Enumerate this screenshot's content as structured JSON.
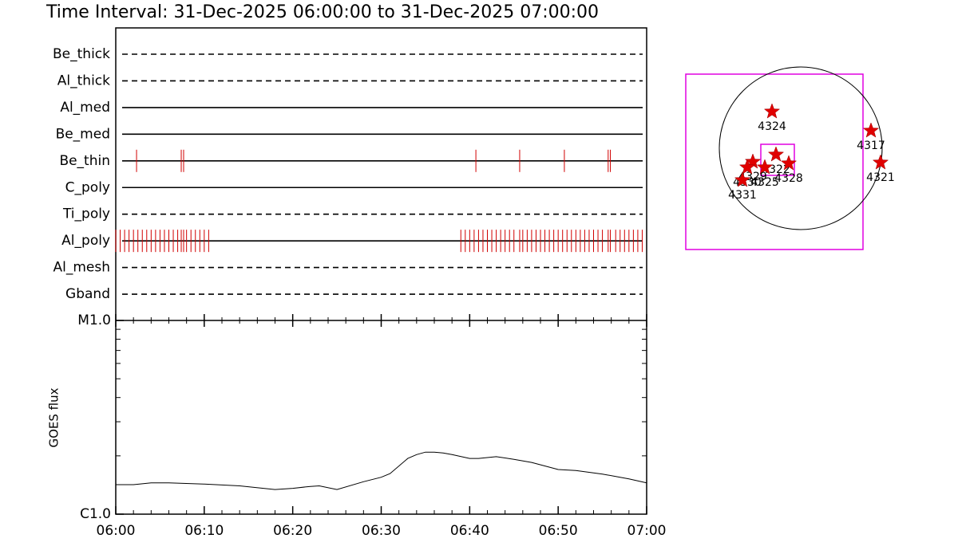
{
  "title": "Time Interval: 31-Dec-2025 06:00:00 to 31-Dec-2025 07:00:00",
  "filters": {
    "type": "event",
    "xlim": [
      0,
      60
    ],
    "rows": [
      {
        "name": "Be_thick",
        "style": "dashed"
      },
      {
        "name": "Al_thick",
        "style": "dashed"
      },
      {
        "name": "Al_med",
        "style": "solid"
      },
      {
        "name": "Be_med",
        "style": "solid"
      },
      {
        "name": "Be_thin",
        "style": "solid",
        "color": "#d00000",
        "events": [
          2.35,
          7.4,
          7.67,
          40.7,
          45.65,
          50.7,
          55.65,
          55.9
        ]
      },
      {
        "name": "C_poly",
        "style": "solid"
      },
      {
        "name": "Ti_poly",
        "style": "dashed"
      },
      {
        "name": "Al_poly",
        "style": "solid",
        "color": "#d00000",
        "events": [
          0,
          0.5,
          1,
          1.5,
          2,
          2.5,
          3,
          3.5,
          4,
          4.5,
          5,
          5.5,
          6,
          6.5,
          7,
          7.4,
          7.67,
          8,
          8.5,
          9,
          9.5,
          10,
          10.5,
          39,
          39.5,
          40,
          40.5,
          41,
          41.5,
          42,
          42.5,
          43,
          43.5,
          44,
          44.5,
          45,
          45.65,
          46,
          46.5,
          47,
          47.5,
          48,
          48.5,
          49,
          49.5,
          50,
          50.5,
          51,
          51.5,
          52,
          52.5,
          53,
          53.5,
          54,
          54.5,
          55,
          55.65,
          55.9,
          56.5,
          57,
          57.5,
          58,
          58.5,
          59,
          59.5
        ]
      },
      {
        "name": "Al_mesh",
        "style": "dashed"
      },
      {
        "name": "Gband",
        "style": "dashed"
      }
    ]
  },
  "chart_data": {
    "type": "line",
    "ylabel": "GOES flux",
    "log_y": true,
    "color": "#000000",
    "x": [
      0,
      2,
      4,
      6,
      10,
      14,
      18,
      20,
      22,
      23,
      25,
      28,
      30,
      31,
      33,
      34,
      35,
      36,
      37,
      38,
      40,
      41,
      42,
      43,
      45,
      47,
      50,
      52,
      55,
      57,
      58,
      60
    ],
    "values": [
      1.42e-06,
      1.42e-06,
      1.45e-06,
      1.45e-06,
      1.43e-06,
      1.4e-06,
      1.34e-06,
      1.36e-06,
      1.39e-06,
      1.4e-06,
      1.34e-06,
      1.47e-06,
      1.55e-06,
      1.62e-06,
      1.94e-06,
      2.03e-06,
      2.09e-06,
      2.09e-06,
      2.07e-06,
      2.03e-06,
      1.94e-06,
      1.94e-06,
      1.96e-06,
      1.98e-06,
      1.92e-06,
      1.85e-06,
      1.7e-06,
      1.68e-06,
      1.61e-06,
      1.55e-06,
      1.52e-06,
      1.45e-06
    ],
    "xlim": [
      0,
      60
    ],
    "ylim": [
      1e-06,
      1e-05
    ],
    "xticks": [
      {
        "value": 0,
        "label": "06:00"
      },
      {
        "value": 10,
        "label": "06:10"
      },
      {
        "value": 20,
        "label": "06:20"
      },
      {
        "value": 30,
        "label": "06:30"
      },
      {
        "value": 40,
        "label": "06:40"
      },
      {
        "value": 50,
        "label": "06:50"
      },
      {
        "value": 60,
        "label": "07:00"
      }
    ],
    "xminorticks": [
      2,
      4,
      6,
      8,
      12,
      14,
      16,
      18,
      22,
      24,
      26,
      28,
      32,
      34,
      36,
      38,
      42,
      44,
      46,
      48,
      52,
      54,
      56,
      58
    ],
    "yticks": [
      {
        "value": 1e-06,
        "label": "C1.0"
      },
      {
        "value": 1e-05,
        "label": "M1.0"
      }
    ],
    "yminorticks": [
      2e-06,
      3e-06,
      4e-06,
      5e-06,
      6e-06,
      7e-06,
      8e-06,
      9e-06
    ]
  },
  "map": {
    "regions": [
      "4324",
      "4317",
      "4321",
      "4322",
      "4328",
      "4325",
      "4329",
      "4330",
      "4331"
    ]
  }
}
